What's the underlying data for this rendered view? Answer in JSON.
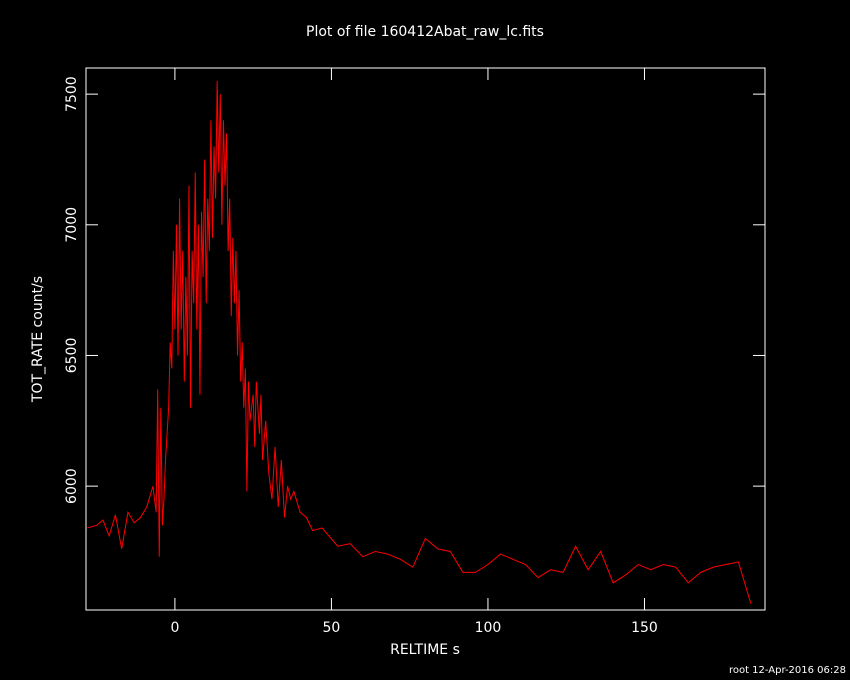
{
  "chart_data": {
    "type": "line",
    "title": "Plot of file 160412Abat_raw_lc.fits",
    "x_label": "RELTIME  s",
    "y_label": "TOT_RATE  count/s",
    "footer": "root 12-Apr-2016 06:28",
    "xlim": [
      -28.4,
      188.5
    ],
    "ylim": [
      5526,
      7600
    ],
    "xticks": [
      0,
      50,
      100,
      150
    ],
    "yticks": [
      6000,
      6500,
      7000,
      7500
    ],
    "series": [
      {
        "color": "#ff0000",
        "x": [
          -28,
          -25,
          -23,
          -21,
          -19,
          -17,
          -15,
          -13,
          -11,
          -9,
          -7,
          -6,
          -5.5,
          -5,
          -4.5,
          -4,
          -3.5,
          -3,
          -2.5,
          -2,
          -1.5,
          -1,
          -0.5,
          0,
          0.5,
          1,
          1.5,
          2,
          2.5,
          3,
          3.5,
          4,
          4.5,
          5,
          5.5,
          6,
          6.5,
          7,
          7.5,
          8,
          8.5,
          9,
          9.5,
          10,
          10.5,
          11,
          11.5,
          12,
          12.5,
          13,
          13.5,
          14,
          14.5,
          15,
          15.5,
          16,
          16.5,
          17,
          17.5,
          18,
          18.5,
          19,
          19.5,
          20,
          20.5,
          21,
          21.5,
          22,
          22.5,
          23,
          23.5,
          24,
          25,
          25.5,
          26,
          27,
          27.5,
          28,
          29,
          30,
          31,
          32,
          33,
          34,
          35,
          36,
          37,
          38,
          40,
          42,
          44,
          47,
          52,
          56,
          60,
          64,
          68,
          72,
          76,
          80,
          84,
          88,
          92,
          96,
          100,
          104,
          108,
          112,
          116,
          120,
          124,
          128,
          132,
          136,
          140,
          144,
          148,
          152,
          156,
          160,
          164,
          168,
          172,
          176,
          180,
          184
        ],
        "values": [
          5840,
          5850,
          5870,
          5810,
          5890,
          5760,
          5900,
          5860,
          5880,
          5920,
          6000,
          5900,
          6370,
          5730,
          6300,
          5850,
          5950,
          6100,
          6200,
          6300,
          6550,
          6450,
          6900,
          6600,
          7000,
          6500,
          7100,
          6600,
          6900,
          6400,
          6800,
          6500,
          7150,
          6300,
          6900,
          6700,
          7200,
          6600,
          7000,
          6350,
          7050,
          6800,
          7250,
          6700,
          7100,
          6900,
          7400,
          6950,
          7300,
          7100,
          7550,
          7200,
          7500,
          7000,
          7400,
          7150,
          7350,
          6900,
          7100,
          6650,
          6950,
          6700,
          6900,
          6500,
          6750,
          6400,
          6550,
          6300,
          6450,
          5980,
          6400,
          6250,
          6350,
          6150,
          6400,
          6200,
          6350,
          6100,
          6250,
          6050,
          5950,
          6150,
          5920,
          6100,
          5880,
          6000,
          5950,
          5980,
          5900,
          5880,
          5830,
          5840,
          5770,
          5780,
          5730,
          5750,
          5740,
          5720,
          5690,
          5800,
          5760,
          5750,
          5670,
          5670,
          5700,
          5740,
          5720,
          5700,
          5650,
          5680,
          5670,
          5770,
          5680,
          5750,
          5630,
          5660,
          5700,
          5680,
          5700,
          5690,
          5630,
          5670,
          5690,
          5700,
          5710,
          5550
        ]
      }
    ]
  }
}
